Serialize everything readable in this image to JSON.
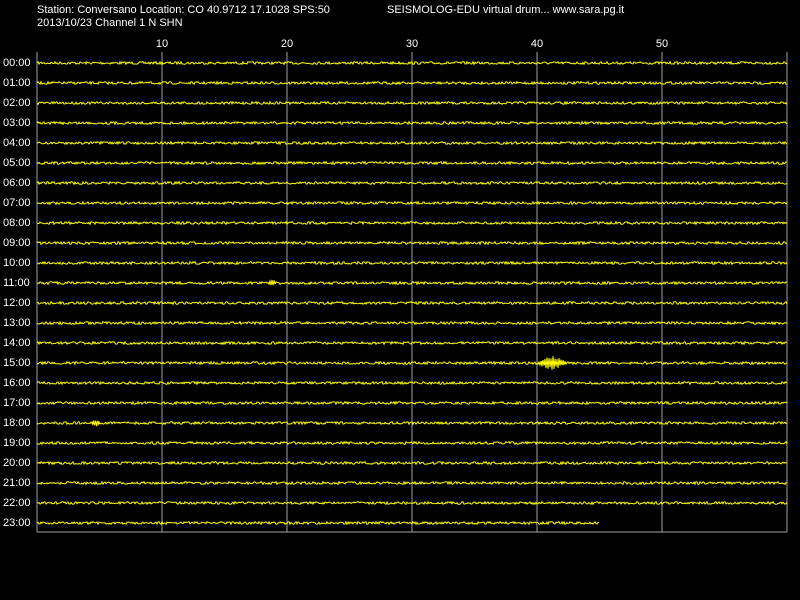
{
  "chart_data": {
    "type": "helicorder",
    "title": "Station: Conversano Location: CO 40.9712 17.1028 SPS:50",
    "subtitle": "2013/10/23  Channel 1 N SHN",
    "source": "SEISMOLOG-EDU virtual drum... www.sara.pg.it",
    "categories": [
      "00:00",
      "01:00",
      "02:00",
      "03:00",
      "04:00",
      "05:00",
      "06:00",
      "07:00",
      "08:00",
      "09:00",
      "10:00",
      "11:00",
      "12:00",
      "13:00",
      "14:00",
      "15:00",
      "16:00",
      "17:00",
      "18:00",
      "19:00",
      "20:00",
      "21:00",
      "22:00",
      "23:00"
    ],
    "values": [
      60,
      60,
      60,
      60,
      60,
      60,
      60,
      60,
      60,
      60,
      60,
      60,
      60,
      60,
      60,
      60,
      60,
      60,
      60,
      60,
      60,
      60,
      60,
      45
    ],
    "color": "#ffff00",
    "grid_color": "#a0a0a0",
    "background": "#000000",
    "xlim": [
      0,
      60
    ],
    "xticks": [
      10,
      20,
      30,
      40,
      50
    ],
    "grid": true,
    "bursts": [
      {
        "row": "15:00",
        "x": 41.2
      },
      {
        "row": "18:00",
        "x": 4.7
      },
      {
        "row": "11:00",
        "x": 18.8
      }
    ]
  }
}
